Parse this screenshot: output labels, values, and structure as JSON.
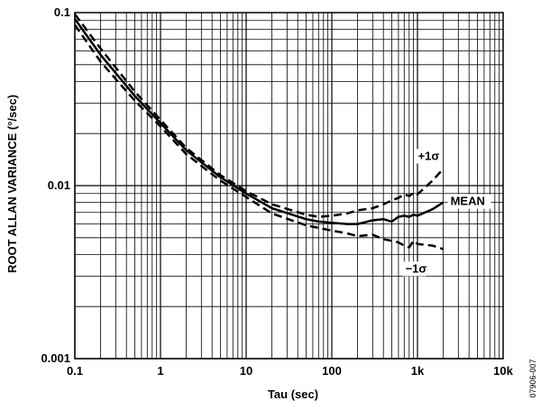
{
  "chart_data": {
    "type": "line",
    "xscale": "log",
    "yscale": "log",
    "xlim": [
      0.1,
      10000
    ],
    "ylim": [
      0.001,
      0.1
    ],
    "xlabel": "Tau (sec)",
    "ylabel": "ROOT ALLAN VARIANCE (°/sec)",
    "xticks": [
      {
        "value": 0.1,
        "label": "0.1"
      },
      {
        "value": 1,
        "label": "1"
      },
      {
        "value": 10,
        "label": "10"
      },
      {
        "value": 100,
        "label": "100"
      },
      {
        "value": 1000,
        "label": "1k"
      },
      {
        "value": 10000,
        "label": "10k"
      }
    ],
    "yticks": [
      {
        "value": 0.1,
        "label": "0.1"
      },
      {
        "value": 0.01,
        "label": "0.01"
      },
      {
        "value": 0.001,
        "label": "0.001"
      }
    ],
    "grid": true,
    "series": [
      {
        "name": "+1σ",
        "style": "dashed",
        "x": [
          0.1,
          0.2,
          0.5,
          1,
          2,
          5,
          10,
          20,
          50,
          70,
          100,
          150,
          200,
          300,
          400,
          500,
          600,
          700,
          800,
          900,
          1000,
          1500,
          2000
        ],
        "y": [
          0.098,
          0.062,
          0.035,
          0.024,
          0.0165,
          0.0115,
          0.0093,
          0.0078,
          0.0068,
          0.0066,
          0.0067,
          0.0069,
          0.0072,
          0.0074,
          0.0078,
          0.0082,
          0.0085,
          0.0089,
          0.0087,
          0.0091,
          0.0089,
          0.0107,
          0.0125
        ]
      },
      {
        "name": "MEAN",
        "style": "solid",
        "x": [
          0.1,
          0.2,
          0.5,
          1,
          2,
          5,
          10,
          20,
          50,
          70,
          100,
          150,
          200,
          300,
          400,
          500,
          600,
          700,
          800,
          900,
          1000,
          1500,
          2000
        ],
        "y": [
          0.092,
          0.057,
          0.033,
          0.023,
          0.016,
          0.0112,
          0.009,
          0.0074,
          0.0064,
          0.0062,
          0.0061,
          0.006,
          0.006,
          0.0063,
          0.0064,
          0.0062,
          0.0066,
          0.0067,
          0.0066,
          0.0068,
          0.0067,
          0.0073,
          0.008
        ]
      },
      {
        "name": "−1σ",
        "style": "dashed",
        "x": [
          0.1,
          0.2,
          0.5,
          1,
          2,
          5,
          10,
          20,
          50,
          70,
          100,
          150,
          200,
          300,
          400,
          500,
          600,
          700,
          800,
          900,
          1000,
          1500,
          2000
        ],
        "y": [
          0.085,
          0.052,
          0.031,
          0.022,
          0.0152,
          0.0107,
          0.0086,
          0.0069,
          0.0059,
          0.0057,
          0.0055,
          0.0053,
          0.0051,
          0.0052,
          0.0049,
          0.0048,
          0.0047,
          0.0045,
          0.0044,
          0.0048,
          0.0046,
          0.0045,
          0.0043
        ]
      }
    ],
    "annotations": {
      "figure_id": "07906-007"
    }
  }
}
